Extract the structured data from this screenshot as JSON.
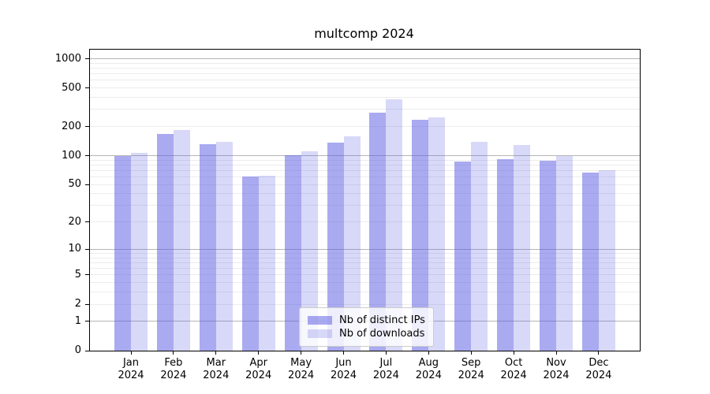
{
  "chart_data": {
    "type": "bar",
    "title": "multcomp 2024",
    "categories": [
      "Jan",
      "Feb",
      "Mar",
      "Apr",
      "May",
      "Jun",
      "Jul",
      "Aug",
      "Sep",
      "Oct",
      "Nov",
      "Dec"
    ],
    "x_tick_year": "2024",
    "series": [
      {
        "name": "Nb of distinct IPs",
        "color": "#aaaaf0",
        "fill": "rgba(92,92,226,0.52)",
        "values": [
          100,
          168,
          132,
          61,
          101,
          137,
          280,
          235,
          87,
          92,
          88,
          67
        ]
      },
      {
        "name": "Nb of downloads",
        "color": "#d8d8f8",
        "fill": "rgba(92,92,226,0.24)",
        "values": [
          106,
          185,
          140,
          62,
          110,
          160,
          385,
          250,
          140,
          130,
          100,
          71
        ]
      }
    ],
    "xlabel": "",
    "ylabel": "",
    "yscale": "log1p",
    "yticks": [
      0,
      1,
      2,
      5,
      10,
      20,
      50,
      100,
      200,
      500,
      1000
    ],
    "ylim": [
      0,
      1240
    ],
    "grid": "horizontal",
    "gridline_major_color": "#b5b5b5",
    "gridline_minor_color": "#ececec",
    "legend_position": "lower-center",
    "legend": [
      "Nb of distinct IPs",
      "Nb of downloads"
    ]
  }
}
